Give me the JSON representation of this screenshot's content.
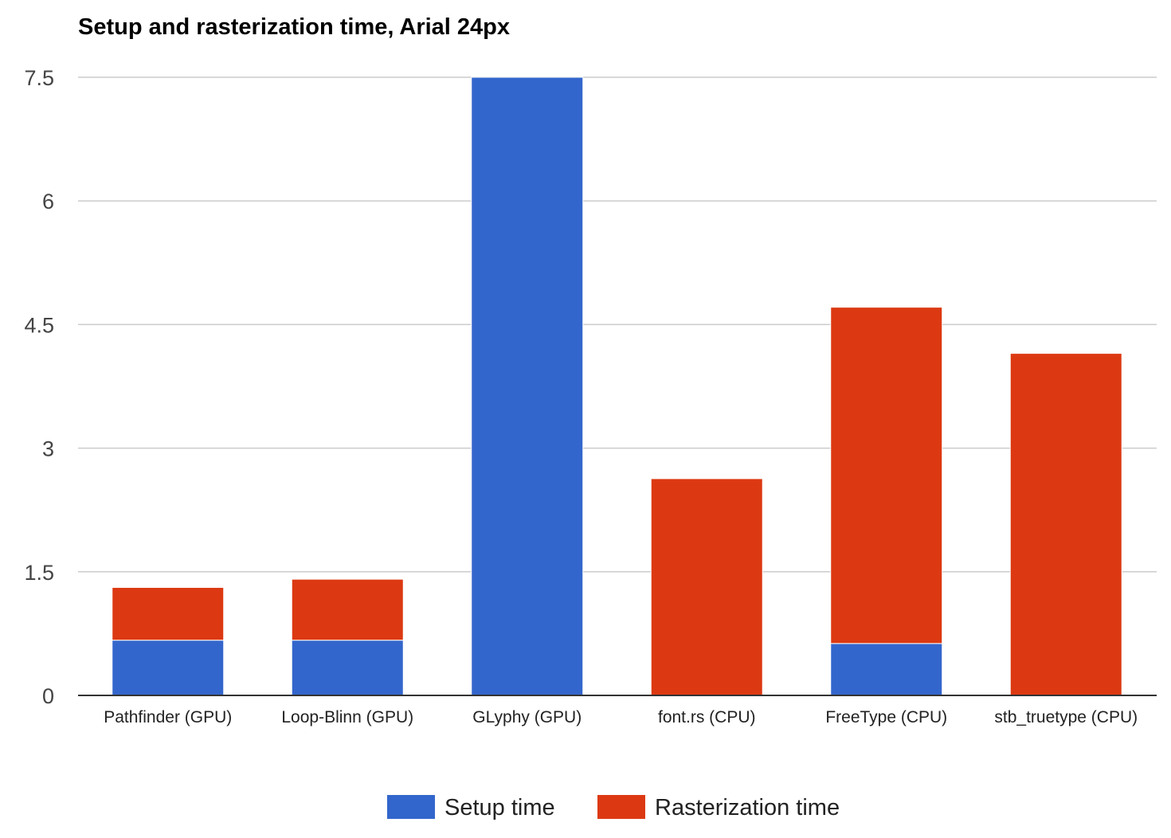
{
  "chart_data": {
    "type": "bar",
    "stacked": true,
    "title": "Setup and rasterization time, Arial 24px",
    "xlabel": "",
    "ylabel": "",
    "categories": [
      "Pathfinder (GPU)",
      "Loop-Blinn (GPU)",
      "GLyphy (GPU)",
      "font.rs (CPU)",
      "FreeType (CPU)",
      "stb_truetype (CPU)"
    ],
    "series": [
      {
        "name": "Setup time",
        "color": "#3366cc",
        "values": [
          0.67,
          0.67,
          7.5,
          0,
          0.63,
          0
        ]
      },
      {
        "name": "Rasterization time",
        "color": "#dc3912",
        "values": [
          0.64,
          0.74,
          0,
          2.63,
          4.08,
          4.15
        ]
      }
    ],
    "ylim": [
      0,
      7.5
    ],
    "yticks": [
      0,
      1.5,
      3,
      4.5,
      6,
      7.5
    ],
    "ytick_labels": [
      "0",
      "1.5",
      "3",
      "4.5",
      "6",
      "7.5"
    ],
    "grid": true,
    "legend_position": "bottom"
  }
}
